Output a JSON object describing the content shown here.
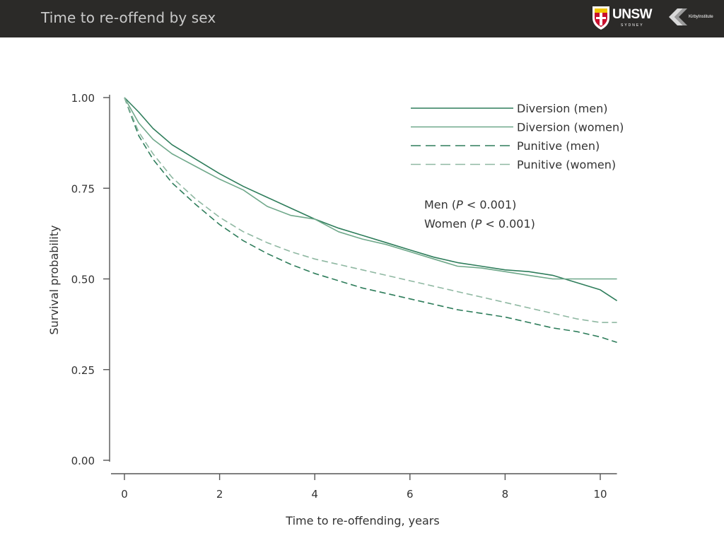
{
  "header": {
    "title": "Time to re-offend by sex",
    "unsw_logo": {
      "text": "UNSW",
      "subtext": "SYDNEY"
    },
    "kirby_logo": {
      "text": "KirbyInstitute"
    },
    "background": "#2b2a28"
  },
  "chart_data": {
    "type": "line",
    "title": "",
    "xlabel": "Time to re-offending, years",
    "ylabel": "Survival probability",
    "xlim": [
      0,
      10.35
    ],
    "ylim": [
      0,
      1
    ],
    "x_ticks": [
      0,
      2,
      4,
      6,
      8,
      10
    ],
    "y_ticks": [
      0,
      0.25,
      0.5,
      0.75,
      1
    ],
    "y_tick_labels": [
      "0.00",
      "0.25",
      "0.50",
      "0.75",
      "1.00"
    ],
    "grid": false,
    "legend_position": "top-right",
    "annotations": [
      {
        "prefix": "Men (",
        "italic": "P",
        "suffix": " < 0.001)"
      },
      {
        "prefix": "Women (",
        "italic": "P",
        "suffix": " < 0.001)"
      }
    ],
    "series": [
      {
        "name": "Diversion (men)",
        "color": "#2e7d5b",
        "dash": "solid",
        "x": [
          0,
          0.3,
          0.6,
          1,
          1.5,
          2,
          2.5,
          3,
          3.5,
          4,
          4.5,
          5,
          5.5,
          6,
          6.5,
          7,
          7.5,
          8,
          8.5,
          9,
          9.5,
          10,
          10.35
        ],
        "y": [
          1,
          0.96,
          0.915,
          0.87,
          0.83,
          0.79,
          0.755,
          0.725,
          0.695,
          0.665,
          0.64,
          0.62,
          0.6,
          0.58,
          0.56,
          0.545,
          0.535,
          0.525,
          0.52,
          0.51,
          0.49,
          0.47,
          0.44
        ]
      },
      {
        "name": "Diversion (women)",
        "color": "#6fa88a",
        "dash": "solid",
        "x": [
          0,
          0.3,
          0.6,
          1,
          1.5,
          2,
          2.5,
          3,
          3.5,
          4,
          4.5,
          5,
          5.5,
          6,
          6.5,
          7,
          7.5,
          8,
          8.5,
          9,
          9.5,
          10,
          10.35
        ],
        "y": [
          1,
          0.93,
          0.885,
          0.845,
          0.81,
          0.775,
          0.745,
          0.7,
          0.675,
          0.665,
          0.63,
          0.61,
          0.595,
          0.575,
          0.555,
          0.535,
          0.53,
          0.52,
          0.51,
          0.5,
          0.5,
          0.5,
          0.5
        ]
      },
      {
        "name": "Punitive (men)",
        "color": "#2e7d5b",
        "dash": "dashed",
        "x": [
          0,
          0.3,
          0.6,
          1,
          1.5,
          2,
          2.5,
          3,
          3.5,
          4,
          4.5,
          5,
          5.5,
          6,
          6.5,
          7,
          7.5,
          8,
          8.5,
          9,
          9.5,
          10,
          10.35
        ],
        "y": [
          1,
          0.895,
          0.83,
          0.765,
          0.705,
          0.65,
          0.605,
          0.57,
          0.54,
          0.515,
          0.495,
          0.475,
          0.46,
          0.445,
          0.43,
          0.415,
          0.405,
          0.395,
          0.38,
          0.365,
          0.355,
          0.34,
          0.325
        ]
      },
      {
        "name": "Punitive (women)",
        "color": "#8fb8a2",
        "dash": "dashed",
        "x": [
          0,
          0.3,
          0.6,
          1,
          1.5,
          2,
          2.5,
          3,
          3.5,
          4,
          4.5,
          5,
          5.5,
          6,
          6.5,
          7,
          7.5,
          8,
          8.5,
          9,
          9.5,
          10,
          10.35
        ],
        "y": [
          1,
          0.905,
          0.845,
          0.78,
          0.72,
          0.67,
          0.63,
          0.6,
          0.575,
          0.555,
          0.54,
          0.525,
          0.51,
          0.495,
          0.48,
          0.465,
          0.45,
          0.435,
          0.42,
          0.405,
          0.39,
          0.38,
          0.38
        ]
      }
    ]
  }
}
